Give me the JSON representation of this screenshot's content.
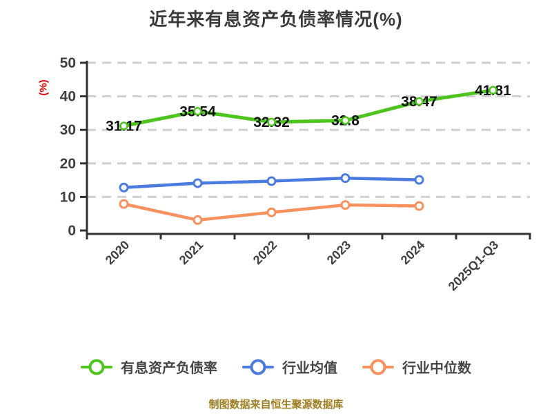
{
  "title": "近年来有息资产负债率情况(%)",
  "footer": "制图数据来自恒生聚源数据库",
  "axes": {
    "y_name": "(%)",
    "y_ticks": [
      0,
      10,
      20,
      30,
      40,
      50
    ],
    "ylim": [
      0,
      50
    ],
    "x_categories": [
      "2020",
      "2021",
      "2022",
      "2023",
      "2024",
      "2025Q1-Q3"
    ]
  },
  "legend": {
    "items": [
      {
        "label": "有息资产负债率",
        "color": "#4ec41f"
      },
      {
        "label": "行业均值",
        "color": "#4c7bdf"
      },
      {
        "label": "行业中位数",
        "color": "#f9915f"
      }
    ]
  },
  "colors": {
    "grid": "#cfcfcf",
    "axis": "#333333",
    "tick_label": "#3f3f3f",
    "data_label": "#141414",
    "title": "#3b3b3b",
    "y_name_red": "#e60000",
    "footer_gold": "#9e7c20"
  },
  "chart_data": {
    "type": "line",
    "title": "近年来有息资产负债率情况(%)",
    "xlabel": "",
    "ylabel": "(%)",
    "ylim": [
      0,
      50
    ],
    "y_ticks": [
      0,
      10,
      20,
      30,
      40,
      50
    ],
    "grid": "horizontal-dashed",
    "legend_position": "bottom",
    "categories": [
      "2020",
      "2021",
      "2022",
      "2023",
      "2024",
      "2025Q1-Q3"
    ],
    "series": [
      {
        "name": "有息资产负债率",
        "color": "#4ec41f",
        "values": [
          31.17,
          35.54,
          32.32,
          32.8,
          38.47,
          41.81
        ],
        "labels": [
          "31.17",
          "35.54",
          "32.32",
          "32.8",
          "38.47",
          "41.81"
        ],
        "show_labels": true
      },
      {
        "name": "行业均值",
        "color": "#4c7bdf",
        "values": [
          12.8,
          14.1,
          14.7,
          15.6,
          15.1
        ],
        "labels": [],
        "show_labels": false
      },
      {
        "name": "行业中位数",
        "color": "#f9915f",
        "values": [
          7.9,
          3.1,
          5.4,
          7.6,
          7.3
        ],
        "labels": [],
        "show_labels": false
      }
    ]
  }
}
